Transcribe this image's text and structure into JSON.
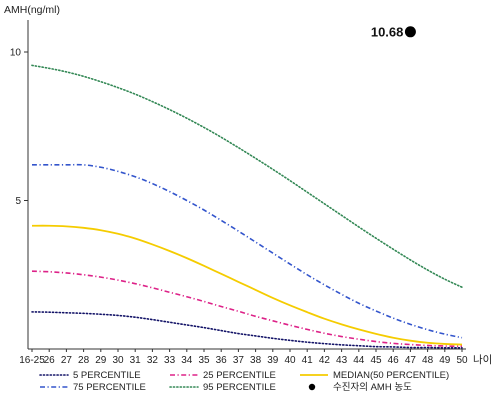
{
  "chart_data": {
    "type": "line",
    "ylabel": "AMH(ng/ml)",
    "xlabel": "나이",
    "x": [
      "16-25",
      "26",
      "27",
      "28",
      "29",
      "30",
      "31",
      "32",
      "33",
      "34",
      "35",
      "36",
      "37",
      "38",
      "39",
      "40",
      "41",
      "42",
      "43",
      "44",
      "45",
      "46",
      "47",
      "48",
      "49",
      "50"
    ],
    "yticks": [
      "5",
      "10"
    ],
    "ylim": [
      0,
      11
    ],
    "grid": false,
    "legend_position": "bottom",
    "series": [
      {
        "name": "5 PERCENTILE",
        "color": "#111166",
        "dash": "dotted",
        "values": [
          1.25,
          1.24,
          1.22,
          1.2,
          1.17,
          1.13,
          1.07,
          0.99,
          0.9,
          0.81,
          0.72,
          0.62,
          0.52,
          0.44,
          0.36,
          0.29,
          0.23,
          0.18,
          0.14,
          0.11,
          0.08,
          0.07,
          0.05,
          0.05,
          0.04,
          0.04
        ]
      },
      {
        "name": "25 PERCENTILE",
        "color": "#dd2288",
        "dash": "dashdot",
        "values": [
          2.62,
          2.6,
          2.56,
          2.5,
          2.42,
          2.32,
          2.2,
          2.06,
          1.91,
          1.76,
          1.6,
          1.43,
          1.27,
          1.1,
          0.95,
          0.8,
          0.66,
          0.53,
          0.42,
          0.33,
          0.25,
          0.19,
          0.15,
          0.12,
          0.1,
          0.09
        ]
      },
      {
        "name": "MEDIAN(50 PERCENTILE)",
        "color": "#f5cc00",
        "dash": "solid",
        "values": [
          4.15,
          4.15,
          4.13,
          4.08,
          4.0,
          3.88,
          3.72,
          3.52,
          3.3,
          3.06,
          2.8,
          2.53,
          2.26,
          1.99,
          1.72,
          1.47,
          1.24,
          1.02,
          0.83,
          0.66,
          0.51,
          0.38,
          0.28,
          0.21,
          0.17,
          0.15
        ]
      },
      {
        "name": "75 PERCENTILE",
        "color": "#3355cc",
        "dash": "dashdot",
        "values": [
          6.2,
          6.2,
          6.2,
          6.2,
          6.12,
          5.98,
          5.8,
          5.57,
          5.3,
          5.0,
          4.68,
          4.33,
          3.97,
          3.6,
          3.23,
          2.86,
          2.5,
          2.16,
          1.84,
          1.54,
          1.28,
          1.04,
          0.83,
          0.65,
          0.5,
          0.38
        ]
      },
      {
        "name": "95 PERCENTILE",
        "color": "#338855",
        "dash": "dotted",
        "values": [
          9.55,
          9.45,
          9.33,
          9.18,
          9.0,
          8.8,
          8.58,
          8.33,
          8.06,
          7.77,
          7.46,
          7.13,
          6.78,
          6.42,
          6.05,
          5.67,
          5.28,
          4.89,
          4.5,
          4.11,
          3.73,
          3.36,
          3.0,
          2.66,
          2.35,
          2.08
        ]
      }
    ],
    "highlight_point": {
      "name": "수진자의 AMH 농도",
      "x": "47",
      "y": 10.68,
      "label": "10.68",
      "color": "#000000"
    },
    "legend": [
      {
        "series": "5 PERCENTILE",
        "label": "5 PERCENTILE"
      },
      {
        "series": "25 PERCENTILE",
        "label": "25 PERCENTILE"
      },
      {
        "series": "MEDIAN(50 PERCENTILE)",
        "label": "MEDIAN(50 PERCENTILE)"
      },
      {
        "series": "75 PERCENTILE",
        "label": "75 PERCENTILE"
      },
      {
        "series": "95 PERCENTILE",
        "label": "95 PERCENTILE"
      },
      {
        "series": "수진자의 AMH 농도",
        "label": "수진자의 AMH 농도",
        "marker": "dot"
      }
    ]
  }
}
